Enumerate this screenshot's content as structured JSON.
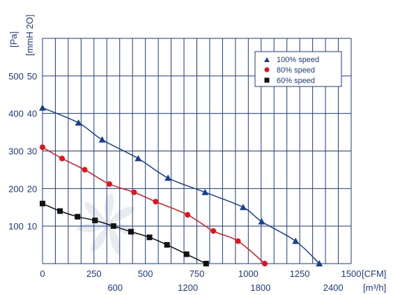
{
  "chart_data": {
    "type": "line",
    "x_unit_primary": "[CFM]",
    "x_unit_secondary": "[m³/h]",
    "y_unit_primary": "[Pa]",
    "y_unit_secondary": "[mmH 2O]",
    "x_ticks_primary": [
      "0",
      "250",
      "500",
      "750",
      "1000",
      "1250",
      "1500"
    ],
    "x_ticks_secondary": [
      "600",
      "1200",
      "1800",
      "2400"
    ],
    "y_ticks_primary": [
      "100",
      "200",
      "300",
      "400",
      "500"
    ],
    "y_ticks_secondary": [
      "10",
      "20",
      "30",
      "40",
      "50"
    ],
    "xlim": [
      0,
      1500
    ],
    "ylim": [
      0,
      600
    ],
    "grid": true,
    "legend_position": "top-right",
    "series": [
      {
        "name": "100%  speed",
        "color": "#1a3f8f",
        "marker": "triangle",
        "x": [
          0,
          175,
          290,
          465,
          610,
          790,
          975,
          1065,
          1230,
          1345
        ],
        "y": [
          415,
          375,
          330,
          280,
          228,
          190,
          150,
          112,
          60,
          0
        ]
      },
      {
        "name": "80%  speed",
        "color": "#e3121b",
        "marker": "circle",
        "x": [
          0,
          95,
          205,
          325,
          445,
          550,
          705,
          830,
          950,
          1080
        ],
        "y": [
          310,
          280,
          250,
          212,
          190,
          165,
          130,
          87,
          60,
          0
        ]
      },
      {
        "name": "60%  speed",
        "color": "#111111",
        "marker": "square",
        "x": [
          0,
          85,
          170,
          255,
          345,
          430,
          520,
          605,
          700,
          795
        ],
        "y": [
          160,
          140,
          125,
          115,
          100,
          85,
          70,
          50,
          25,
          0
        ]
      }
    ]
  }
}
